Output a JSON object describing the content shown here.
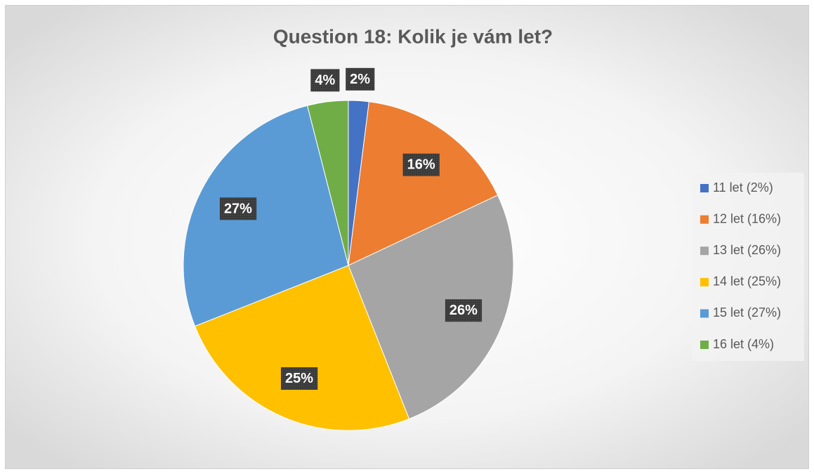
{
  "chart_data": {
    "type": "pie",
    "title": "Question 18: Kolik je vám let?",
    "categories": [
      "11 let (2%)",
      "12 let (16%)",
      "13 let (26%)",
      "14 let (25%)",
      "15 let (27%)",
      "16 let (4%)"
    ],
    "values": [
      2,
      16,
      26,
      25,
      27,
      4
    ],
    "value_labels": [
      "2%",
      "16%",
      "26%",
      "25%",
      "27%",
      "4%"
    ],
    "colors": [
      "#4472c4",
      "#ed7d31",
      "#a5a5a5",
      "#ffc000",
      "#5b9bd5",
      "#70ad47"
    ],
    "legend": "right"
  }
}
